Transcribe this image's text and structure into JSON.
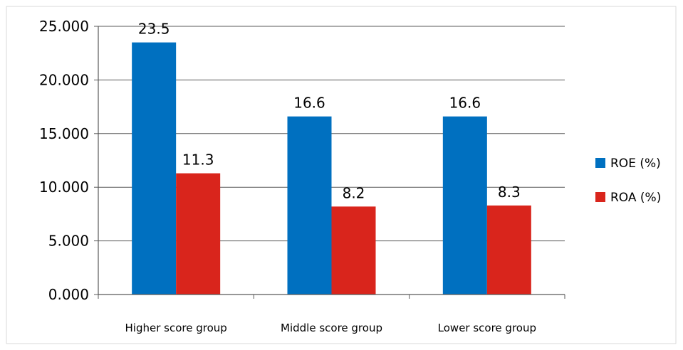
{
  "chart_data": {
    "type": "bar",
    "categories": [
      "Higher score group",
      "Middle score group",
      "Lower score group"
    ],
    "series": [
      {
        "name": "ROE (%)",
        "values": [
          23.5,
          16.6,
          16.6
        ],
        "color": "#0070C0"
      },
      {
        "name": "ROA (%)",
        "values": [
          11.3,
          8.2,
          8.3
        ],
        "color": "#D9251C"
      }
    ],
    "data_labels": [
      [
        "23.5",
        "16.6",
        "16.6"
      ],
      [
        "11.3",
        "8.2",
        "8.3"
      ]
    ],
    "y_ticks": [
      "0.000",
      "5.000",
      "10.000",
      "15.000",
      "20.000",
      "25.000"
    ],
    "ylim": [
      0,
      25
    ],
    "grid": true,
    "legend_position": "right",
    "title": "",
    "xlabel": "",
    "ylabel": ""
  }
}
